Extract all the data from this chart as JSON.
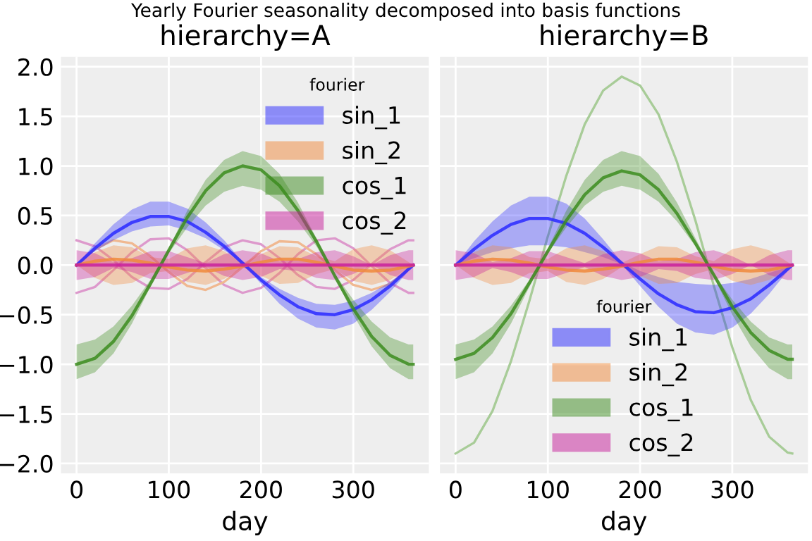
{
  "chart_data": [
    {
      "type": "line",
      "title": "hierarchy=A",
      "xlabel": "day",
      "annotations": [
        "Yearly Fourier seasonality decomposed into basis functions"
      ],
      "legend_title": "fourier",
      "legend": "top right",
      "grid": true,
      "x": [
        0,
        20,
        40,
        60,
        80,
        100,
        120,
        140,
        160,
        180,
        200,
        220,
        240,
        260,
        280,
        300,
        320,
        340,
        360,
        365
      ],
      "xlim": [
        -17,
        382
      ],
      "xticks": [
        0,
        100,
        200,
        300
      ],
      "ylim": [
        -2.1,
        2.1
      ],
      "yticks": [
        {
          "value": -2,
          "label": "−2.0"
        },
        {
          "value": -1.5,
          "label": "−1.5"
        },
        {
          "value": -1,
          "label": "−1.0"
        },
        {
          "value": -0.5,
          "label": "−0.5"
        },
        {
          "value": 0,
          "label": "0.0"
        },
        {
          "value": 0.5,
          "label": "0.5"
        },
        {
          "value": 1,
          "label": "1.0"
        },
        {
          "value": 1.5,
          "label": "1.5"
        },
        {
          "value": 2,
          "label": "2.0"
        }
      ],
      "series": [
        {
          "type": "line",
          "color": "#dd99cc",
          "values": [
            0.25,
            0.19,
            0.05,
            -0.12,
            -0.23,
            -0.24,
            -0.14,
            0.03,
            0.18,
            0.25,
            0.21,
            0.07,
            -0.1,
            -0.22,
            -0.24,
            -0.15,
            0.01,
            0.16,
            0.25,
            0.25
          ]
        },
        {
          "type": "line",
          "color": "#dd99cc",
          "values": [
            -0.28,
            -0.22,
            -0.05,
            0.13,
            0.26,
            0.27,
            0.15,
            -0.03,
            -0.2,
            -0.28,
            -0.23,
            -0.08,
            0.11,
            0.25,
            0.27,
            0.17,
            -0.01,
            -0.18,
            -0.28,
            -0.28
          ]
        },
        {
          "type": "line",
          "color": "#f0b890",
          "values": [
            0,
            0.16,
            0.25,
            0.22,
            0.09,
            -0.07,
            -0.21,
            -0.25,
            -0.17,
            -0.02,
            0.14,
            0.24,
            0.23,
            0.11,
            -0.05,
            -0.2,
            -0.25,
            -0.19,
            -0.04,
            0
          ]
        },
        {
          "type": "line",
          "name": "sin_1",
          "color": "#2a2aff",
          "values": [
            0,
            0.17,
            0.32,
            0.43,
            0.49,
            0.49,
            0.44,
            0.33,
            0.19,
            0.02,
            -0.15,
            -0.3,
            -0.42,
            -0.49,
            -0.5,
            -0.45,
            -0.35,
            -0.21,
            -0.04,
            0
          ],
          "upper": [
            0,
            0.22,
            0.41,
            0.56,
            0.64,
            0.64,
            0.57,
            0.43,
            0.25,
            0.03,
            -0.12,
            -0.24,
            -0.33,
            -0.39,
            -0.4,
            -0.36,
            -0.28,
            -0.17,
            -0.03,
            0
          ],
          "lower": [
            0,
            0.14,
            0.25,
            0.34,
            0.39,
            0.4,
            0.35,
            0.27,
            0.15,
            0.02,
            -0.19,
            -0.39,
            -0.54,
            -0.63,
            -0.65,
            -0.59,
            -0.45,
            -0.27,
            -0.06,
            0
          ]
        },
        {
          "type": "line",
          "name": "sin_2",
          "color": "#f08a3c",
          "values": [
            0,
            0.04,
            0.06,
            0.05,
            0.02,
            -0.02,
            -0.05,
            -0.06,
            -0.04,
            -0.01,
            0.03,
            0.06,
            0.06,
            0.03,
            -0.01,
            -0.05,
            -0.06,
            -0.05,
            -0.01,
            0
          ],
          "upper": [
            0,
            0.13,
            0.2,
            0.18,
            0.08,
            0.06,
            0.17,
            0.2,
            0.14,
            0.02,
            0.11,
            0.19,
            0.18,
            0.09,
            0.04,
            0.16,
            0.2,
            0.15,
            0.03,
            0
          ],
          "lower": [
            0,
            -0.13,
            -0.2,
            -0.18,
            -0.08,
            -0.06,
            -0.17,
            -0.2,
            -0.14,
            -0.02,
            -0.11,
            -0.19,
            -0.18,
            -0.09,
            -0.04,
            -0.16,
            -0.2,
            -0.15,
            -0.03,
            0
          ]
        },
        {
          "type": "line",
          "name": "cos_1",
          "color": "#3c8c1e",
          "values": [
            -1,
            -0.94,
            -0.77,
            -0.51,
            -0.19,
            0.15,
            0.48,
            0.75,
            0.93,
            1,
            0.96,
            0.8,
            0.55,
            0.24,
            -0.11,
            -0.44,
            -0.72,
            -0.91,
            -1,
            -1
          ],
          "upper": [
            -0.8,
            -0.75,
            -0.62,
            -0.41,
            -0.15,
            0.17,
            0.55,
            0.86,
            1.06,
            1.15,
            1.1,
            0.92,
            0.63,
            0.27,
            -0.09,
            -0.35,
            -0.57,
            -0.73,
            -0.8,
            -0.8
          ],
          "lower": [
            -1.15,
            -1.08,
            -0.89,
            -0.59,
            -0.22,
            0.12,
            0.38,
            0.6,
            0.74,
            0.8,
            0.76,
            0.64,
            0.44,
            0.19,
            -0.12,
            -0.5,
            -0.82,
            -1.04,
            -1.15,
            -1.15
          ]
        },
        {
          "type": "line",
          "name": "cos_2",
          "color": "#c81e9b",
          "values": [
            0,
            0,
            0,
            0,
            0,
            0,
            0,
            0,
            0,
            0,
            0,
            0,
            0,
            0,
            0,
            0,
            0,
            0,
            0,
            0
          ],
          "upper": [
            0.15,
            0.12,
            0.03,
            0.07,
            0.14,
            0.14,
            0.08,
            0.02,
            0.11,
            0.15,
            0.12,
            0.04,
            0.06,
            0.13,
            0.15,
            0.09,
            0,
            0.1,
            0.15,
            0.15
          ],
          "lower": [
            -0.15,
            -0.12,
            -0.03,
            -0.07,
            -0.14,
            -0.14,
            -0.08,
            -0.02,
            -0.11,
            -0.15,
            -0.12,
            -0.04,
            -0.06,
            -0.13,
            -0.15,
            -0.09,
            0,
            -0.1,
            -0.15,
            -0.15
          ]
        }
      ]
    },
    {
      "type": "line",
      "title": "hierarchy=B",
      "xlabel": "day",
      "legend_title": "fourier",
      "legend": "bottom",
      "grid": true,
      "tick_labels": "x",
      "x": [
        0,
        20,
        40,
        60,
        80,
        100,
        120,
        140,
        160,
        180,
        200,
        220,
        240,
        260,
        280,
        300,
        320,
        340,
        360,
        365
      ],
      "xlim": [
        -17,
        382
      ],
      "xticks": [
        0,
        100,
        200,
        300
      ],
      "ylim": [
        -2.1,
        2.1
      ],
      "series": [
        {
          "type": "line",
          "color": "#a8cc98",
          "values": [
            -1.9,
            -1.79,
            -1.47,
            -0.97,
            -0.36,
            0.29,
            0.9,
            1.42,
            1.76,
            1.9,
            1.81,
            1.52,
            1.04,
            0.45,
            -0.21,
            -0.83,
            -1.36,
            -1.73,
            -1.89,
            -1.9
          ]
        },
        {
          "type": "line",
          "name": "sin_1",
          "color": "#2a2aff",
          "values": [
            0,
            0.16,
            0.3,
            0.41,
            0.47,
            0.47,
            0.42,
            0.32,
            0.18,
            0.02,
            -0.14,
            -0.29,
            -0.4,
            -0.47,
            -0.48,
            -0.43,
            -0.34,
            -0.2,
            -0.04,
            0
          ],
          "upper": [
            0,
            0.24,
            0.44,
            0.6,
            0.69,
            0.69,
            0.62,
            0.47,
            0.26,
            0.03,
            -0.06,
            -0.12,
            -0.17,
            -0.19,
            -0.2,
            -0.18,
            -0.14,
            -0.08,
            -0.02,
            0
          ],
          "lower": [
            0,
            0.07,
            0.13,
            0.17,
            0.2,
            0.2,
            0.18,
            0.13,
            0.08,
            0.01,
            -0.21,
            -0.42,
            -0.59,
            -0.68,
            -0.7,
            -0.63,
            -0.49,
            -0.29,
            -0.06,
            0
          ]
        },
        {
          "name": "sin_2",
          "color": "#f08a3c",
          "values": [
            0,
            0.04,
            0.06,
            0.05,
            0.02,
            -0.02,
            -0.05,
            -0.06,
            -0.04,
            -0.01,
            0.03,
            0.06,
            0.06,
            0.03,
            -0.01,
            -0.05,
            -0.06,
            -0.05,
            -0.01,
            0
          ],
          "upper": [
            0,
            0.13,
            0.2,
            0.18,
            0.08,
            0.06,
            0.17,
            0.2,
            0.14,
            0.02,
            0.11,
            0.19,
            0.18,
            0.09,
            0.04,
            0.16,
            0.2,
            0.15,
            0.03,
            0
          ],
          "lower": [
            0,
            -0.13,
            -0.2,
            -0.18,
            -0.08,
            -0.06,
            -0.17,
            -0.2,
            -0.14,
            -0.02,
            -0.11,
            -0.19,
            -0.18,
            -0.09,
            -0.04,
            -0.16,
            -0.2,
            -0.15,
            -0.03,
            0
          ]
        },
        {
          "name": "cos_1",
          "color": "#3c8c1e",
          "values": [
            -0.95,
            -0.89,
            -0.73,
            -0.49,
            -0.18,
            0.14,
            0.45,
            0.71,
            0.88,
            0.95,
            0.91,
            0.76,
            0.52,
            0.22,
            -0.1,
            -0.42,
            -0.68,
            -0.86,
            -0.95,
            -0.95
          ],
          "upper": [
            -0.8,
            -0.75,
            -0.62,
            -0.41,
            -0.15,
            0.17,
            0.55,
            0.86,
            1.06,
            1.15,
            1.1,
            0.92,
            0.63,
            0.27,
            -0.09,
            -0.35,
            -0.57,
            -0.73,
            -0.8,
            -0.8
          ],
          "lower": [
            -1.15,
            -1.08,
            -0.89,
            -0.59,
            -0.22,
            0.12,
            0.38,
            0.6,
            0.74,
            0.8,
            0.76,
            0.64,
            0.44,
            0.19,
            -0.12,
            -0.5,
            -0.82,
            -1.04,
            -1.15,
            -1.15
          ]
        },
        {
          "type": "line",
          "name": "cos_2",
          "color": "#c81e9b",
          "values": [
            0,
            0,
            0,
            0,
            0,
            0,
            0,
            0,
            0,
            0,
            0,
            0,
            0,
            0,
            0,
            0,
            0,
            0,
            0,
            0
          ],
          "upper": [
            0.15,
            0.12,
            0.03,
            0.07,
            0.14,
            0.14,
            0.08,
            0.02,
            0.11,
            0.15,
            0.12,
            0.04,
            0.06,
            0.13,
            0.15,
            0.09,
            0,
            0.1,
            0.15,
            0.15
          ],
          "lower": [
            -0.15,
            -0.12,
            -0.03,
            -0.07,
            -0.14,
            -0.14,
            -0.08,
            -0.02,
            -0.11,
            -0.15,
            -0.12,
            -0.04,
            -0.06,
            -0.13,
            -0.15,
            -0.09,
            0,
            -0.1,
            -0.15,
            -0.15
          ]
        }
      ]
    }
  ]
}
